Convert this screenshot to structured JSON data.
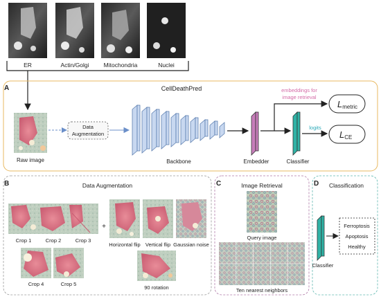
{
  "channels": {
    "labels": [
      "ER",
      "Actin/Golgi",
      "Mitochondria",
      "Nuclei"
    ]
  },
  "panel_a": {
    "letter": "A",
    "title": "CellDeathPred",
    "raw_image_label": "Raw image",
    "augmentation_box_line1": "Data",
    "augmentation_box_line2": "Augmentation",
    "backbone_label": "Backbone",
    "embedder_label": "Embedder",
    "classifier_label": "Classifier",
    "embeddings_line1": "embeddings for",
    "embeddings_line2": "image retrieval",
    "logits_label": "logits",
    "metric_loss_main": "L",
    "metric_loss_sub": "metric",
    "ce_loss_main": "L",
    "ce_loss_sub": "CE",
    "colors": {
      "embedder": "#c77dba",
      "classifier": "#2fb3a6",
      "backbone": "#c8d8f0",
      "accent_text": "#d46aa6",
      "logits_text": "#2aa9b8",
      "panel_border": "#e8b860"
    }
  },
  "panel_b": {
    "letter": "B",
    "title": "Data Augmentation",
    "crops": [
      "Crop 1",
      "Crop 2",
      "Crop 3",
      "Crop 4",
      "Crop 5"
    ],
    "plus": "+",
    "transforms": [
      "Horizontal flip",
      "Vertical flip",
      "Gaussian noise",
      "90 rotation"
    ]
  },
  "panel_c": {
    "letter": "C",
    "title": "Image Retrieval",
    "query_label": "Query image",
    "neighbors_label": "Ten nearest neighbors"
  },
  "panel_d": {
    "letter": "D",
    "title": "Classification",
    "classifier_label": "Classifier",
    "classes": [
      "Ferroptosis",
      "Apoptosis",
      "Healthy"
    ]
  }
}
